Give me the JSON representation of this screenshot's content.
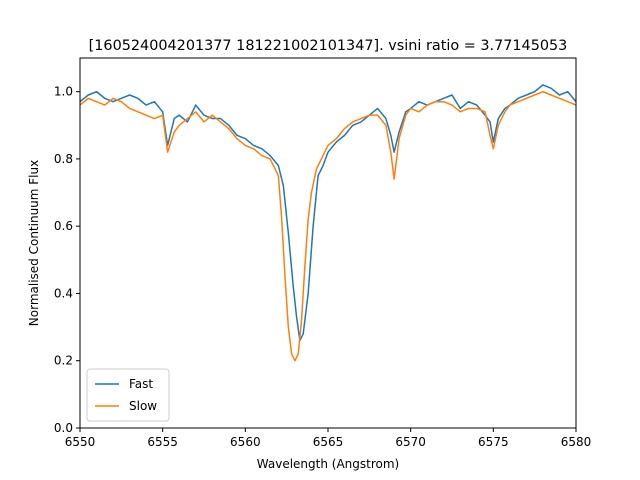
{
  "chart_data": {
    "type": "line",
    "title": "[160524004201377 181221002101347]. vsini ratio = 3.77145053",
    "xlabel": "Wavelength (Angstrom)",
    "ylabel": "Normalised Continuum Flux",
    "xlim": [
      6550,
      6580
    ],
    "ylim": [
      0.0,
      1.1
    ],
    "xticks": [
      6550,
      6555,
      6560,
      6565,
      6570,
      6575,
      6580
    ],
    "xtick_labels": [
      "6550",
      "6555",
      "6560",
      "6565",
      "6570",
      "6575",
      "6580"
    ],
    "yticks": [
      0.0,
      0.2,
      0.4,
      0.6,
      0.8,
      1.0
    ],
    "ytick_labels": [
      "0.0",
      "0.2",
      "0.4",
      "0.6",
      "0.8",
      "1.0"
    ],
    "grid": false,
    "legend_position": "bottom-left",
    "series": [
      {
        "name": "Fast",
        "color": "#1f77b4",
        "x": [
          6550.0,
          6550.5,
          6551.0,
          6551.5,
          6552.0,
          6552.5,
          6553.0,
          6553.5,
          6554.0,
          6554.5,
          6555.0,
          6555.3,
          6555.7,
          6556.0,
          6556.5,
          6557.0,
          6557.5,
          6558.0,
          6558.5,
          6559.0,
          6559.5,
          6560.0,
          6560.5,
          6561.0,
          6561.5,
          6562.0,
          6562.3,
          6562.6,
          6562.9,
          6563.1,
          6563.3,
          6563.5,
          6563.8,
          6564.1,
          6564.4,
          6564.7,
          6565.0,
          6565.5,
          6566.0,
          6566.5,
          6567.0,
          6567.5,
          6568.0,
          6568.5,
          6568.8,
          6569.0,
          6569.3,
          6569.7,
          6570.0,
          6570.5,
          6571.0,
          6571.5,
          6572.0,
          6572.5,
          6573.0,
          6573.5,
          6574.0,
          6574.5,
          6574.8,
          6575.0,
          6575.3,
          6575.7,
          6576.0,
          6576.5,
          6577.0,
          6577.5,
          6578.0,
          6578.5,
          6579.0,
          6579.5,
          6580.0
        ],
        "y": [
          0.97,
          0.99,
          1.0,
          0.98,
          0.97,
          0.98,
          0.99,
          0.98,
          0.96,
          0.97,
          0.94,
          0.84,
          0.92,
          0.93,
          0.91,
          0.96,
          0.93,
          0.92,
          0.92,
          0.9,
          0.87,
          0.86,
          0.84,
          0.83,
          0.81,
          0.78,
          0.72,
          0.58,
          0.42,
          0.33,
          0.26,
          0.28,
          0.4,
          0.6,
          0.75,
          0.78,
          0.82,
          0.85,
          0.87,
          0.9,
          0.91,
          0.93,
          0.95,
          0.92,
          0.87,
          0.82,
          0.88,
          0.94,
          0.95,
          0.97,
          0.96,
          0.97,
          0.98,
          0.99,
          0.95,
          0.97,
          0.96,
          0.93,
          0.91,
          0.85,
          0.92,
          0.95,
          0.96,
          0.98,
          0.99,
          1.0,
          1.02,
          1.01,
          0.99,
          1.0,
          0.97
        ]
      },
      {
        "name": "Slow",
        "color": "#ff7f0e",
        "x": [
          6550.0,
          6550.5,
          6551.0,
          6551.5,
          6552.0,
          6552.5,
          6553.0,
          6553.5,
          6554.0,
          6554.5,
          6555.0,
          6555.3,
          6555.7,
          6556.0,
          6556.5,
          6557.0,
          6557.5,
          6558.0,
          6558.5,
          6559.0,
          6559.5,
          6560.0,
          6560.5,
          6561.0,
          6561.5,
          6562.0,
          6562.2,
          6562.4,
          6562.6,
          6562.8,
          6563.0,
          6563.2,
          6563.4,
          6563.6,
          6563.8,
          6564.0,
          6564.3,
          6564.6,
          6565.0,
          6565.5,
          6566.0,
          6566.5,
          6567.0,
          6567.5,
          6568.0,
          6568.5,
          6568.8,
          6569.0,
          6569.3,
          6569.7,
          6570.0,
          6570.5,
          6571.0,
          6571.5,
          6572.0,
          6572.5,
          6573.0,
          6573.5,
          6574.0,
          6574.5,
          6574.8,
          6575.0,
          6575.3,
          6575.7,
          6576.0,
          6576.5,
          6577.0,
          6577.5,
          6578.0,
          6578.5,
          6579.0,
          6579.5,
          6580.0
        ],
        "y": [
          0.96,
          0.98,
          0.97,
          0.96,
          0.98,
          0.97,
          0.95,
          0.94,
          0.93,
          0.92,
          0.93,
          0.82,
          0.88,
          0.9,
          0.92,
          0.94,
          0.91,
          0.93,
          0.91,
          0.89,
          0.86,
          0.84,
          0.83,
          0.81,
          0.8,
          0.75,
          0.62,
          0.45,
          0.3,
          0.22,
          0.2,
          0.22,
          0.32,
          0.48,
          0.62,
          0.7,
          0.77,
          0.8,
          0.84,
          0.86,
          0.89,
          0.91,
          0.92,
          0.93,
          0.93,
          0.9,
          0.82,
          0.74,
          0.86,
          0.93,
          0.95,
          0.94,
          0.96,
          0.97,
          0.97,
          0.96,
          0.94,
          0.95,
          0.95,
          0.94,
          0.87,
          0.83,
          0.9,
          0.94,
          0.96,
          0.97,
          0.98,
          0.99,
          1.0,
          0.99,
          0.98,
          0.97,
          0.96
        ]
      }
    ]
  }
}
